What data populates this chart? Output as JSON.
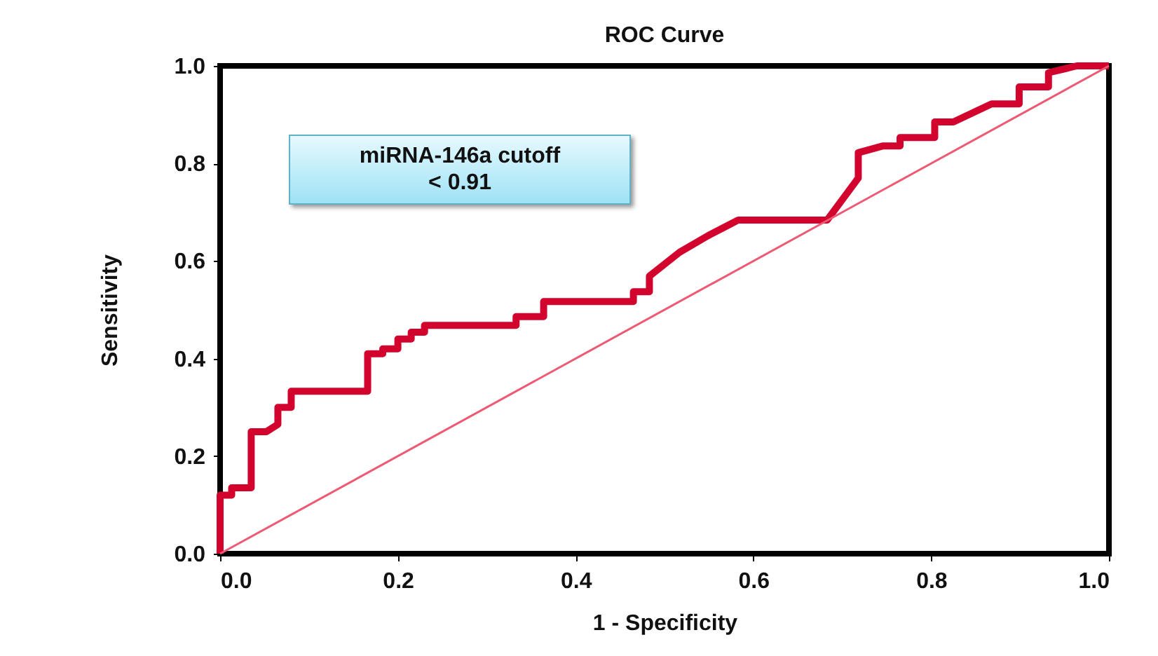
{
  "chart_data": {
    "type": "line",
    "title": "ROC Curve",
    "xlabel": "1 - Specificity",
    "ylabel": "Sensitivity",
    "xlim": [
      0,
      1
    ],
    "ylim": [
      0,
      1
    ],
    "xticks": [
      {
        "value": 0,
        "label": "0.0"
      },
      0.2,
      0.4,
      0.6,
      0.8,
      {
        "value": 1,
        "label": "1.0"
      }
    ],
    "yticks": [
      {
        "value": 0,
        "label": "0.0"
      },
      0.2,
      0.4,
      0.6,
      0.8,
      {
        "value": 1,
        "label": "1.0"
      }
    ],
    "grid": false,
    "marker": "none",
    "line_style": "solid",
    "annotations": [
      "miRNA-146a cutoff\n< 0.91"
    ],
    "series": [
      {
        "color": "#d2042d",
        "x": [
          0,
          0,
          0.013,
          0.013,
          0.035,
          0.035,
          0.052,
          0.065,
          0.065,
          0.08,
          0.08,
          0.166,
          0.166,
          0.183,
          0.183,
          0.2,
          0.2,
          0.215,
          0.215,
          0.23,
          0.23,
          0.333,
          0.333,
          0.364,
          0.364,
          0.465,
          0.465,
          0.483,
          0.483,
          0.517,
          0.549,
          0.565,
          0.583,
          0.683,
          0.718,
          0.718,
          0.746,
          0.765,
          0.765,
          0.804,
          0.804,
          0.825,
          0.868,
          0.899,
          0.899,
          0.932,
          0.932,
          0.964,
          1
        ],
        "values": [
          0,
          0.12,
          0.12,
          0.135,
          0.135,
          0.25,
          0.25,
          0.265,
          0.3,
          0.3,
          0.333,
          0.333,
          0.41,
          0.41,
          0.42,
          0.42,
          0.44,
          0.44,
          0.454,
          0.454,
          0.468,
          0.468,
          0.486,
          0.486,
          0.517,
          0.517,
          0.537,
          0.537,
          0.569,
          0.618,
          0.652,
          0.667,
          0.684,
          0.684,
          0.77,
          0.822,
          0.836,
          0.836,
          0.853,
          0.853,
          0.885,
          0.885,
          0.922,
          0.922,
          0.957,
          0.957,
          0.986,
          1,
          1
        ]
      },
      {
        "color": "#ee5a74",
        "x": [
          0,
          1
        ],
        "values": [
          0,
          1
        ]
      }
    ]
  }
}
